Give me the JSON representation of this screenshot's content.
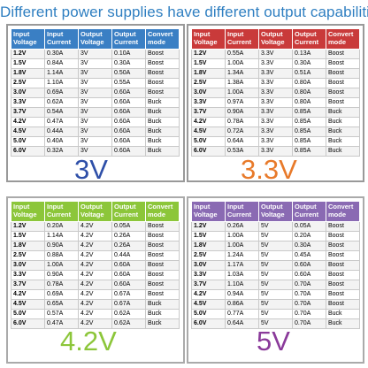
{
  "title": "Different power supplies have different output capabilities",
  "headers": [
    "Input Voltage",
    "Input Current",
    "Output Voltage",
    "Output Current",
    "Convert mode"
  ],
  "panels": [
    {
      "label": "3V",
      "rows": [
        [
          "1.2V",
          "0.30A",
          "3V",
          "0.10A",
          "Boost"
        ],
        [
          "1.5V",
          "0.84A",
          "3V",
          "0.30A",
          "Boost"
        ],
        [
          "1.8V",
          "1.14A",
          "3V",
          "0.50A",
          "Boost"
        ],
        [
          "2.5V",
          "1.10A",
          "3V",
          "0.55A",
          "Boost"
        ],
        [
          "3.0V",
          "0.69A",
          "3V",
          "0.60A",
          "Boost"
        ],
        [
          "3.3V",
          "0.62A",
          "3V",
          "0.60A",
          "Buck"
        ],
        [
          "3.7V",
          "0.54A",
          "3V",
          "0.60A",
          "Buck"
        ],
        [
          "4.2V",
          "0.47A",
          "3V",
          "0.60A",
          "Buck"
        ],
        [
          "4.5V",
          "0.44A",
          "3V",
          "0.60A",
          "Buck"
        ],
        [
          "5.0V",
          "0.40A",
          "3V",
          "0.60A",
          "Buck"
        ],
        [
          "6.0V",
          "0.32A",
          "3V",
          "0.60A",
          "Buck"
        ]
      ]
    },
    {
      "label": "3.3V",
      "rows": [
        [
          "1.2V",
          "0.55A",
          "3.3V",
          "0.13A",
          "Boost"
        ],
        [
          "1.5V",
          "1.00A",
          "3.3V",
          "0.30A",
          "Boost"
        ],
        [
          "1.8V",
          "1.34A",
          "3.3V",
          "0.51A",
          "Boost"
        ],
        [
          "2.5V",
          "1.38A",
          "3.3V",
          "0.80A",
          "Boost"
        ],
        [
          "3.0V",
          "1.00A",
          "3.3V",
          "0.80A",
          "Boost"
        ],
        [
          "3.3V",
          "0.97A",
          "3.3V",
          "0.80A",
          "Boost"
        ],
        [
          "3.7V",
          "0.90A",
          "3.3V",
          "0.85A",
          "Buck"
        ],
        [
          "4.2V",
          "0.78A",
          "3.3V",
          "0.85A",
          "Buck"
        ],
        [
          "4.5V",
          "0.72A",
          "3.3V",
          "0.85A",
          "Buck"
        ],
        [
          "5.0V",
          "0.64A",
          "3.3V",
          "0.85A",
          "Buck"
        ],
        [
          "6.0V",
          "0.53A",
          "3.3V",
          "0.85A",
          "Buck"
        ]
      ]
    },
    {
      "label": "4.2V",
      "rows": [
        [
          "1.2V",
          "0.20A",
          "4.2V",
          "0.05A",
          "Boost"
        ],
        [
          "1.5V",
          "1.14A",
          "4.2V",
          "0.26A",
          "Boost"
        ],
        [
          "1.8V",
          "0.90A",
          "4.2V",
          "0.26A",
          "Boost"
        ],
        [
          "2.5V",
          "0.88A",
          "4.2V",
          "0.44A",
          "Boost"
        ],
        [
          "3.0V",
          "1.00A",
          "4.2V",
          "0.60A",
          "Boost"
        ],
        [
          "3.3V",
          "0.90A",
          "4.2V",
          "0.60A",
          "Boost"
        ],
        [
          "3.7V",
          "0.78A",
          "4.2V",
          "0.60A",
          "Boost"
        ],
        [
          "4.2V",
          "0.69A",
          "4.2V",
          "0.67A",
          "Boost"
        ],
        [
          "4.5V",
          "0.65A",
          "4.2V",
          "0.67A",
          "Buck"
        ],
        [
          "5.0V",
          "0.57A",
          "4.2V",
          "0.62A",
          "Buck"
        ],
        [
          "6.0V",
          "0.47A",
          "4.2V",
          "0.62A",
          "Buck"
        ]
      ]
    },
    {
      "label": "5V",
      "rows": [
        [
          "1.2V",
          "0.26A",
          "5V",
          "0.05A",
          "Boost"
        ],
        [
          "1.5V",
          "1.00A",
          "5V",
          "0.20A",
          "Boost"
        ],
        [
          "1.8V",
          "1.00A",
          "5V",
          "0.30A",
          "Boost"
        ],
        [
          "2.5V",
          "1.24A",
          "5V",
          "0.45A",
          "Boost"
        ],
        [
          "3.0V",
          "1.17A",
          "5V",
          "0.60A",
          "Boost"
        ],
        [
          "3.3V",
          "1.03A",
          "5V",
          "0.60A",
          "Boost"
        ],
        [
          "3.7V",
          "1.10A",
          "5V",
          "0.70A",
          "Boost"
        ],
        [
          "4.2V",
          "0.94A",
          "5V",
          "0.70A",
          "Boost"
        ],
        [
          "4.5V",
          "0.86A",
          "5V",
          "0.70A",
          "Boost"
        ],
        [
          "5.0V",
          "0.77A",
          "5V",
          "0.70A",
          "Buck"
        ],
        [
          "6.0V",
          "0.64A",
          "5V",
          "0.70A",
          "Buck"
        ]
      ]
    }
  ]
}
